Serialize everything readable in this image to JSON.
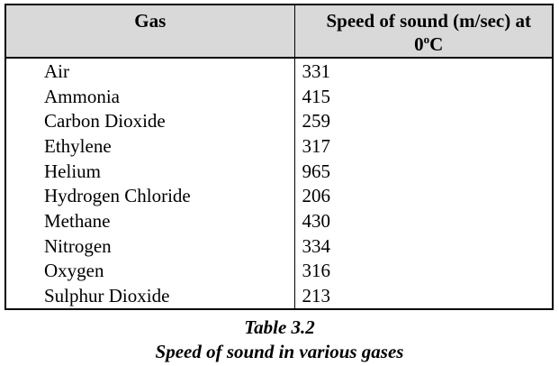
{
  "table": {
    "headers": {
      "gas": "Gas",
      "speed_main": "Speed of sound (m/sec) at",
      "speed_temp_value": "0",
      "speed_temp_degree": "o",
      "speed_temp_unit": "C"
    },
    "rows": [
      {
        "gas": "Air",
        "speed": "331"
      },
      {
        "gas": "Ammonia",
        "speed": "415"
      },
      {
        "gas": "Carbon Dioxide",
        "speed": "259"
      },
      {
        "gas": "Ethylene",
        "speed": "317"
      },
      {
        "gas": "Helium",
        "speed": "965"
      },
      {
        "gas": "Hydrogen Chloride",
        "speed": "206"
      },
      {
        "gas": "Methane",
        "speed": "430"
      },
      {
        "gas": "Nitrogen",
        "speed": "334"
      },
      {
        "gas": "Oxygen",
        "speed": "316"
      },
      {
        "gas": "Sulphur Dioxide",
        "speed": "213"
      }
    ]
  },
  "caption": {
    "label": "Table 3.2",
    "title": "Speed of sound in various gases"
  }
}
